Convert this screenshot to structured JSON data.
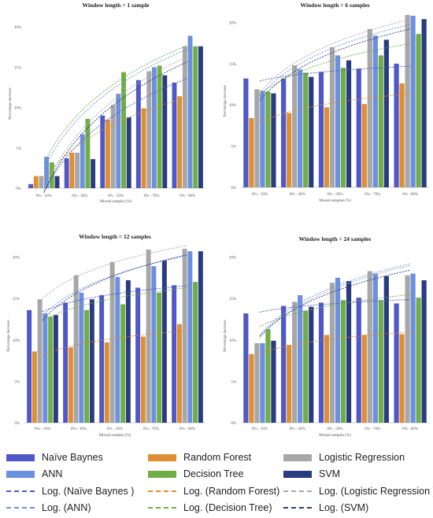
{
  "chart_data": [
    {
      "type": "bar",
      "title": "Window length = 1 sample",
      "xlabel": "Missed samples (%)",
      "ylabel": "Percentage decrease",
      "yticks": [
        "0%",
        "5%",
        "10%",
        "15%",
        "20%"
      ],
      "ylim": [
        0,
        21
      ],
      "categories": [
        "0% - 10%",
        "0% - 30%",
        "0% - 50%",
        "0% - 70%",
        "0% - 90%"
      ],
      "series": [
        {
          "name": "Naïve Baynes",
          "values": [
            0.5,
            3.7,
            9.0,
            13.4,
            13.1
          ]
        },
        {
          "name": "Random Forest",
          "values": [
            1.5,
            4.4,
            8.5,
            9.9,
            11.4
          ]
        },
        {
          "name": "Logistic Regression",
          "values": [
            1.5,
            4.4,
            10.3,
            14.5,
            17.6
          ]
        },
        {
          "name": "ANN",
          "values": [
            3.9,
            6.7,
            11.7,
            15.0,
            18.9
          ]
        },
        {
          "name": "Decision Tree",
          "values": [
            3.2,
            8.6,
            14.4,
            15.2,
            17.6
          ]
        },
        {
          "name": "SVM",
          "values": [
            1.5,
            3.6,
            8.8,
            14.0,
            17.6
          ]
        }
      ],
      "legend": "bottom",
      "grid": false
    },
    {
      "type": "bar",
      "title": "Window length = 6 samples",
      "xlabel": "Missed samples (%)",
      "ylabel": "Percentage decrease",
      "yticks": [
        "0%",
        "5%",
        "10%",
        "15%",
        "20%"
      ],
      "ylim": [
        0,
        21
      ],
      "categories": [
        "0% - 10%",
        "0% - 30%",
        "0% - 50%",
        "0% - 70%",
        "0% - 90%"
      ],
      "series": [
        {
          "name": "Naïve Baynes",
          "values": [
            13.2,
            13.2,
            14.0,
            14.4,
            15.0
          ]
        },
        {
          "name": "Random Forest",
          "values": [
            8.4,
            9.0,
            9.7,
            10.1,
            12.6
          ]
        },
        {
          "name": "Logistic Regression",
          "values": [
            11.9,
            14.8,
            17.0,
            19.2,
            20.9
          ]
        },
        {
          "name": "ANN",
          "values": [
            11.7,
            14.3,
            16.0,
            18.4,
            20.8
          ]
        },
        {
          "name": "Decision Tree",
          "values": [
            11.6,
            13.9,
            14.5,
            16.0,
            18.6
          ]
        },
        {
          "name": "SVM",
          "values": [
            11.4,
            13.4,
            15.4,
            17.9,
            20.4
          ]
        }
      ],
      "legend": "bottom",
      "grid": false
    },
    {
      "type": "bar",
      "title": "Window length = 12 samples",
      "xlabel": "Missed samples (%)",
      "ylabel": "Percentage decrease",
      "yticks": [
        "0%",
        "5%",
        "10%",
        "15%",
        "20%"
      ],
      "ylim": [
        0,
        21
      ],
      "categories": [
        "0% - 10%",
        "0% - 30%",
        "0% - 50%",
        "0% - 70%",
        "0% - 90%"
      ],
      "series": [
        {
          "name": "Naïve Baynes",
          "values": [
            13.6,
            14.5,
            15.4,
            16.3,
            16.6
          ]
        },
        {
          "name": "Random Forest",
          "values": [
            8.6,
            9.1,
            9.7,
            10.4,
            11.9
          ]
        },
        {
          "name": "Logistic Regression",
          "values": [
            14.9,
            17.8,
            19.4,
            20.9,
            21.0
          ]
        },
        {
          "name": "ANN",
          "values": [
            13.2,
            15.7,
            17.6,
            18.9,
            20.7
          ]
        },
        {
          "name": "Decision Tree",
          "values": [
            12.8,
            13.6,
            14.3,
            15.7,
            17.0
          ]
        },
        {
          "name": "SVM",
          "values": [
            13.0,
            14.9,
            17.2,
            19.6,
            20.7
          ]
        }
      ],
      "legend": "bottom",
      "grid": false
    },
    {
      "type": "bar",
      "title": "Window length = 24 samples",
      "xlabel": "Missed samples (%)",
      "ylabel": "Percentage decrease",
      "yticks": [
        "0%",
        "5%",
        "10%",
        "15%",
        "20%"
      ],
      "ylim": [
        0,
        21
      ],
      "categories": [
        "0% - 10%",
        "0% - 30%",
        "0% - 50%",
        "0% - 70%",
        "0% - 90%"
      ],
      "series": [
        {
          "name": "Naïve Baynes",
          "values": [
            13.2,
            14.1,
            14.5,
            15.1,
            14.4
          ]
        },
        {
          "name": "Random Forest",
          "values": [
            8.3,
            9.4,
            10.6,
            10.6,
            10.7
          ]
        },
        {
          "name": "Logistic Regression",
          "values": [
            9.6,
            14.6,
            16.9,
            18.3,
            17.8
          ]
        },
        {
          "name": "ANN",
          "values": [
            9.6,
            15.4,
            17.5,
            18.0,
            18.0
          ]
        },
        {
          "name": "Decision Tree",
          "values": [
            11.3,
            13.5,
            14.8,
            14.8,
            15.1
          ]
        },
        {
          "name": "SVM",
          "values": [
            9.9,
            14.0,
            17.1,
            17.7,
            17.2
          ]
        }
      ],
      "legend": "bottom",
      "grid": false
    }
  ],
  "colors": {
    "Naïve Baynes": "#4f58c6",
    "Random Forest": "#e08e33",
    "Logistic Regression": "#a7a7a7",
    "ANN": "#6c8fe0",
    "Decision Tree": "#70ad47",
    "SVM": "#293c80"
  },
  "legend": {
    "bars": [
      "Naïve Baynes",
      "Random Forest",
      "Logistic Regression",
      "ANN",
      "Decision Tree",
      "SVM"
    ],
    "trend_labels": [
      "Log. (Naïve Baynes )",
      "Log. (Random Forest)",
      "Log. (Logistic Regression )",
      "Log. (ANN)",
      "Log. (Decision Tree)",
      "Log. (SVM)"
    ]
  }
}
